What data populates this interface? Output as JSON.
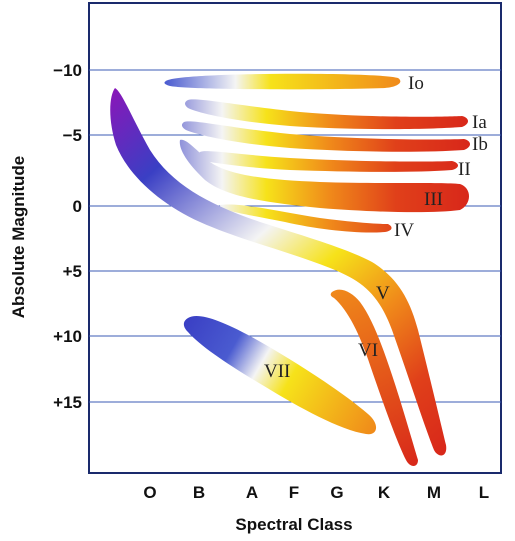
{
  "diagram": {
    "x_axis": {
      "title": "Spectral Class",
      "ticks": [
        "O",
        "B",
        "A",
        "F",
        "G",
        "K",
        "M",
        "L"
      ]
    },
    "y_axis": {
      "title": "Absolute Magnitude",
      "ticks": [
        "−10",
        "−5",
        "0",
        "+5",
        "+10",
        "+15"
      ]
    },
    "luminosity_classes": [
      "Io",
      "Ia",
      "Ib",
      "II",
      "III",
      "IV",
      "V",
      "VI",
      "VII"
    ],
    "colors": {
      "frame": "#1a2a6c",
      "gridline": "#3b5bb5",
      "blue": "#3a3fc4",
      "violet": "#8a16b8",
      "white": "#f4f4f4",
      "yellow": "#f6e21a",
      "orange": "#f08a1a",
      "red": "#d8271a"
    }
  }
}
